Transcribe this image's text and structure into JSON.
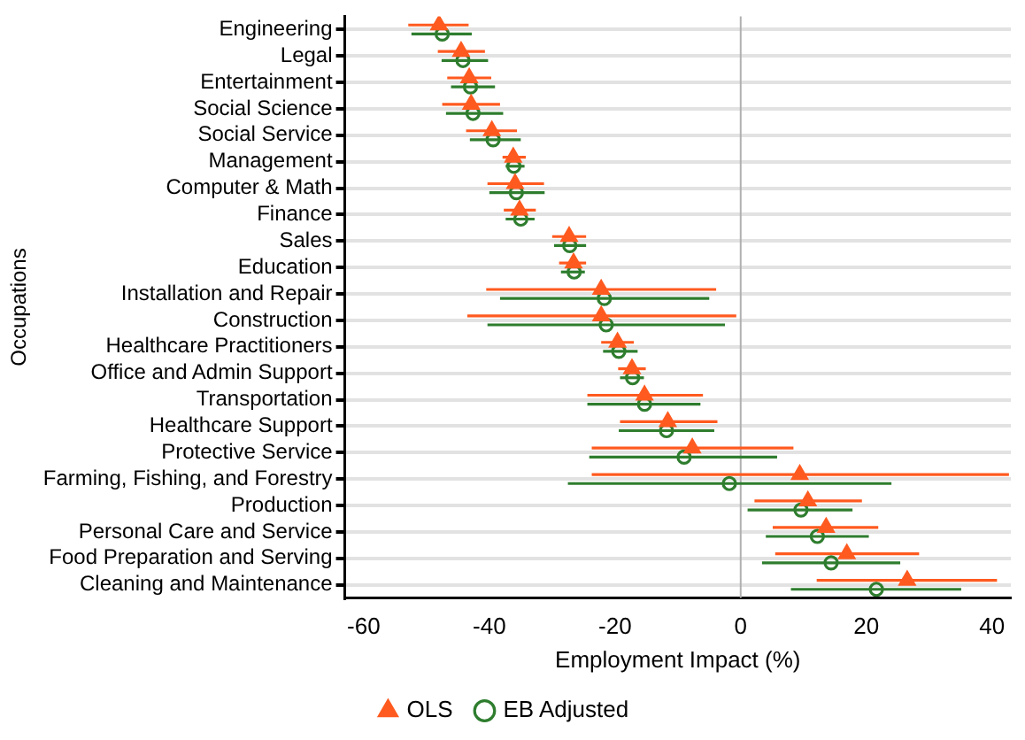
{
  "chart_data": {
    "type": "scatter",
    "orientation": "horizontal",
    "xlabel": "Employment Impact (%)",
    "ylabel": "Occupations",
    "categories": [
      "Engineering",
      "Legal",
      "Entertainment",
      "Social Science",
      "Social Service",
      "Management",
      "Computer & Math",
      "Finance",
      "Sales",
      "Education",
      "Installation and Repair",
      "Construction",
      "Healthcare Practitioners",
      "Office and Admin Support",
      "Transportation",
      "Healthcare Support",
      "Protective Service",
      "Farming, Fishing, and Forestry",
      "Production",
      "Personal Care and Service",
      "Food Preparation and Serving",
      "Cleaning and Maintenance"
    ],
    "series": [
      {
        "name": "OLS",
        "color": "#ff5a1f",
        "marker": "triangle",
        "values": [
          -48,
          -44.5,
          -43.2,
          -42.9,
          -39.6,
          -36.2,
          -35.9,
          -35.2,
          -27.3,
          -26.6,
          -22.2,
          -22.2,
          -19.6,
          -17.3,
          -15.3,
          -11.6,
          -7.7,
          9.4,
          10.7,
          13.6,
          16.9,
          26.5
        ],
        "errors": [
          [
            -52.9,
            -43.3
          ],
          [
            -48.2,
            -40.7
          ],
          [
            -46.7,
            -39.7
          ],
          [
            -47.5,
            -38.3
          ],
          [
            -43.7,
            -35.6
          ],
          [
            -37.9,
            -34.2
          ],
          [
            -40.3,
            -31.3
          ],
          [
            -37.7,
            -32.6
          ],
          [
            -30,
            -24.6
          ],
          [
            -28.9,
            -24.6
          ],
          [
            -40.5,
            -3.9
          ],
          [
            -43.5,
            -0.7
          ],
          [
            -22.2,
            -17
          ],
          [
            -19.5,
            -15.1
          ],
          [
            -24.4,
            -6
          ],
          [
            -19.2,
            -3.7
          ],
          [
            -23.7,
            8.4
          ],
          [
            -23.7,
            42.7
          ],
          [
            2.2,
            19.3
          ],
          [
            5.1,
            21.9
          ],
          [
            5.5,
            28.4
          ],
          [
            12.1,
            40.8
          ]
        ]
      },
      {
        "name": "EB Adjusted",
        "color": "#2e7d2e",
        "marker": "circle",
        "values": [
          -47.5,
          -44.2,
          -43,
          -42.6,
          -39.4,
          -36.1,
          -35.7,
          -35,
          -27.2,
          -26.5,
          -21.7,
          -21.4,
          -19.4,
          -17.2,
          -15.3,
          -11.8,
          -9,
          -1.8,
          9.6,
          12.2,
          14.4,
          21.6
        ],
        "errors": [
          [
            -52.4,
            -42.8
          ],
          [
            -47.6,
            -40.2
          ],
          [
            -46.1,
            -39.1
          ],
          [
            -46.9,
            -37.8
          ],
          [
            -43.1,
            -35
          ],
          [
            -37.4,
            -34.4
          ],
          [
            -40,
            -31.2
          ],
          [
            -37.4,
            -32.8
          ],
          [
            -29.7,
            -24.6
          ],
          [
            -28.6,
            -24.8
          ],
          [
            -38.3,
            -5
          ],
          [
            -40.3,
            -2.5
          ],
          [
            -21.9,
            -16.4
          ],
          [
            -19.2,
            -15.4
          ],
          [
            -24.4,
            -6.4
          ],
          [
            -19.4,
            -4.2
          ],
          [
            -24.1,
            5.8
          ],
          [
            -27.5,
            24
          ],
          [
            1.1,
            17.8
          ],
          [
            4,
            20.4
          ],
          [
            3.4,
            25.4
          ],
          [
            8,
            35.1
          ]
        ]
      }
    ],
    "xlim": [
      -63,
      43
    ],
    "xticks": [
      -60,
      -40,
      -20,
      0,
      20,
      40
    ],
    "ref_lines": [
      {
        "axis": "x",
        "value": 0,
        "color": "#b0b0b0"
      }
    ],
    "grid": "y",
    "legend": "bottom"
  }
}
